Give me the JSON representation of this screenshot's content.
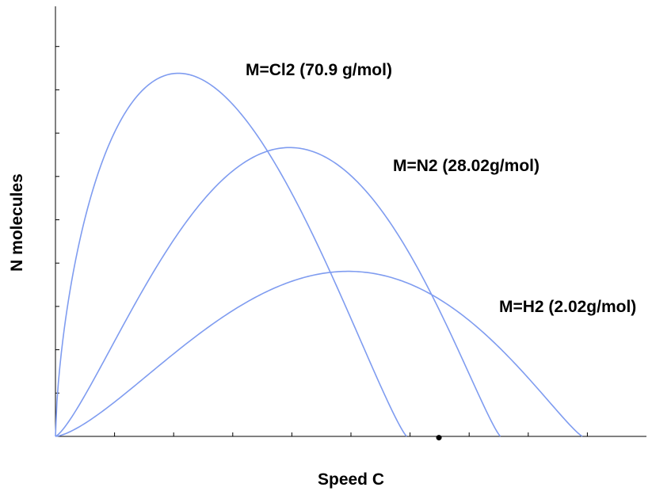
{
  "chart_data": {
    "type": "line",
    "title": "",
    "xlabel": "Speed C",
    "ylabel": "N molecules",
    "xlim": [
      0,
      10
    ],
    "ylim": [
      0,
      10
    ],
    "x_ticks": 10,
    "y_ticks": 9,
    "grid": false,
    "series": [
      {
        "name": "M=Cl2 (70.9 g/mol)",
        "peak_x": 2.1,
        "peak_y": 8.8,
        "end_x": 6.0,
        "color": "#7f9cf0"
      },
      {
        "name": "M=N2 (28.02g/mol)",
        "peak_x": 4.0,
        "peak_y": 7.0,
        "end_x": 7.6,
        "color": "#7f9cf0"
      },
      {
        "name": "M=H2 (2.02g/mol)",
        "peak_x": 5.0,
        "peak_y": 4.0,
        "end_x": 9.0,
        "color": "#7f9cf0"
      }
    ],
    "marker_point": {
      "x": 6.55,
      "y": -0.03
    }
  }
}
